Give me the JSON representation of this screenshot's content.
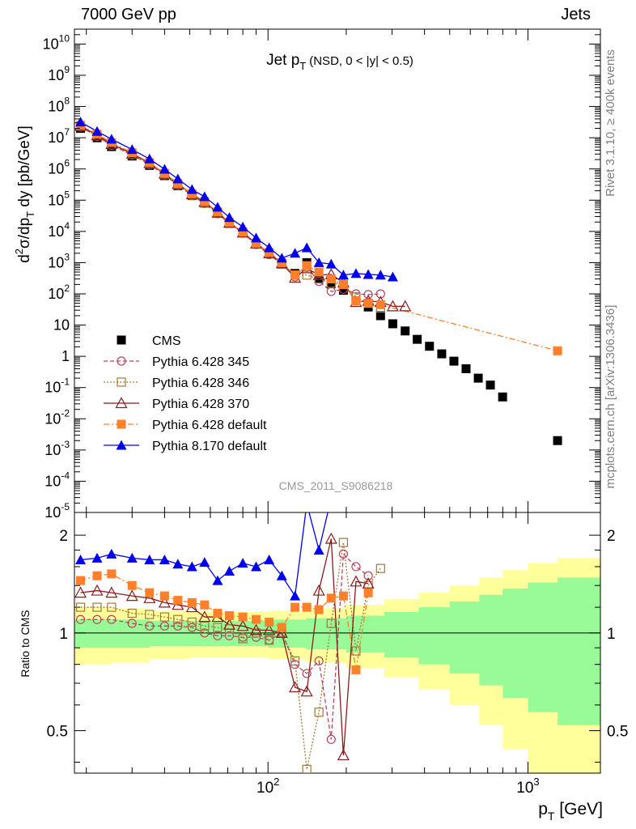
{
  "header": {
    "left": "7000 GeV pp",
    "right": "Jets"
  },
  "side": {
    "rivet": "Rivet 3.1.10, ≥ 400k events",
    "mcplots": "mcplots.cern.ch [arXiv:1306.3436]"
  },
  "chart_data": {
    "type": "scatter",
    "title": "Jet p_T (NSD,   0 < |y| < 0.5)",
    "watermark": "CMS_2011_S9086218",
    "xlabel": "p_T [GeV]",
    "ylabel_main": "d^2σ/dp_T dy [pb/GeV]",
    "ylabel_ratio": "Ratio to CMS",
    "x_scale": "log",
    "xlim": [
      18,
      1900
    ],
    "x_ticks": [
      100,
      1000
    ],
    "main_ylim": [
      1e-05,
      30000000000.0
    ],
    "main_y_scale": "log",
    "main_y_ticks": [
      "10^-5",
      "10^-4",
      "10^-3",
      "10^-2",
      "10^-1",
      "1",
      "10",
      "10^2",
      "10^3",
      "10^4",
      "10^5",
      "10^6",
      "10^7",
      "10^8",
      "10^9",
      "10^10"
    ],
    "ratio_ylim": [
      0.37,
      2.35
    ],
    "ratio_y_scale": "log",
    "ratio_y_ticks": [
      "0.5",
      "1",
      "2"
    ],
    "legend_position": "left-center",
    "band_colors": {
      "inner": "#98fb98",
      "outer": "#ffff9c"
    },
    "series": [
      {
        "name": "CMS",
        "color": "#000000",
        "marker": "square-filled",
        "line": "none",
        "x": [
          19,
          22,
          25,
          30,
          35,
          40,
          45,
          51,
          57,
          64,
          71,
          80,
          90,
          101,
          113,
          127,
          141,
          157,
          175,
          195,
          218,
          243,
          271,
          302,
          337,
          375,
          418,
          466,
          519,
          578,
          644,
          717,
          799,
          1300
        ],
        "y": [
          20000000,
          10000000,
          5200000,
          2600000,
          1300000,
          610000,
          290000,
          140000,
          80000,
          38000,
          18000,
          9000,
          4000,
          2000,
          900,
          450,
          1000,
          300,
          210,
          130,
          60,
          38,
          20,
          11,
          6.5,
          3.5,
          2.1,
          1.2,
          0.7,
          0.4,
          0.2,
          0.12,
          0.05,
          0.002
        ]
      },
      {
        "name": "Pythia 6.428 345",
        "color": "#b5455a",
        "marker": "circle-open",
        "line": "dashed",
        "x": [
          19,
          22,
          25,
          30,
          35,
          40,
          45,
          51,
          57,
          64,
          71,
          80,
          90,
          101,
          113,
          127,
          141,
          157,
          175,
          195,
          218,
          243,
          271
        ],
        "y": [
          22000000,
          11000000,
          5700000,
          2800000,
          1400000,
          640000,
          300000,
          140000,
          78000,
          37000,
          18000,
          8800,
          3800,
          1800,
          900,
          350,
          700,
          250,
          120,
          140,
          100,
          95,
          100
        ],
        "ratio_x": [
          19,
          22,
          25,
          30,
          35,
          40,
          45,
          51,
          57,
          64,
          71,
          80,
          90,
          101,
          113,
          127,
          141,
          157,
          175,
          195,
          218,
          243
        ],
        "ratio": [
          1.1,
          1.1,
          1.1,
          1.07,
          1.05,
          1.05,
          1.05,
          1.04,
          1.0,
          0.98,
          0.98,
          0.97,
          0.97,
          0.95,
          1.0,
          0.8,
          0.75,
          0.82,
          0.47,
          1.75,
          1.6,
          1.5
        ]
      },
      {
        "name": "Pythia 6.428 346",
        "color": "#a07838",
        "marker": "square-open",
        "line": "dotted",
        "x": [
          19,
          22,
          25,
          30,
          35,
          40,
          45,
          51,
          57,
          64,
          71,
          80,
          90,
          101,
          113,
          127,
          141,
          157,
          175,
          195,
          218,
          243,
          271
        ],
        "y": [
          23000000,
          11500000,
          6000000,
          2900000,
          1450000,
          660000,
          310000,
          145000,
          80000,
          38000,
          18500,
          9000,
          4000,
          1900,
          950,
          400,
          400,
          300,
          220,
          200,
          80,
          50,
          35
        ],
        "ratio_x": [
          19,
          22,
          25,
          30,
          35,
          40,
          45,
          51,
          57,
          64,
          71,
          80,
          90,
          101,
          113,
          127,
          141,
          157,
          175,
          195,
          218,
          243,
          271
        ],
        "ratio": [
          1.2,
          1.2,
          1.2,
          1.15,
          1.14,
          1.12,
          1.1,
          1.08,
          1.05,
          1.04,
          1.03,
          0.96,
          1.0,
          0.95,
          1.0,
          0.82,
          0.38,
          0.57,
          1.07,
          1.9,
          0.88,
          1.4,
          1.58
        ]
      },
      {
        "name": "Pythia 6.428 370",
        "color": "#8b1a1a",
        "marker": "triangle-open",
        "line": "solid",
        "x": [
          19,
          22,
          25,
          30,
          35,
          40,
          45,
          51,
          57,
          64,
          71,
          80,
          90,
          101,
          113,
          127,
          141,
          157,
          175,
          195,
          218,
          243,
          271,
          302,
          337
        ],
        "y": [
          24000000,
          12000000,
          6300000,
          3100000,
          1550000,
          700000,
          330000,
          155000,
          88000,
          40000,
          19000,
          9200,
          4100,
          2000,
          950,
          330,
          660,
          400,
          420,
          230,
          55,
          60,
          55,
          40,
          40
        ],
        "ratio_x": [
          19,
          22,
          25,
          30,
          35,
          40,
          45,
          51,
          57,
          64,
          71,
          80,
          90,
          101,
          113,
          127,
          141,
          157,
          175,
          195,
          218,
          243
        ],
        "ratio": [
          1.33,
          1.35,
          1.33,
          1.3,
          1.28,
          1.24,
          1.22,
          1.2,
          1.12,
          1.12,
          1.06,
          1.05,
          1.02,
          1.02,
          1.0,
          0.68,
          0.66,
          1.35,
          1.95,
          0.42,
          1.44,
          1.42
        ]
      },
      {
        "name": "Pythia 6.428 default",
        "color": "#ff7f2a",
        "marker": "square-filled",
        "line": "dashdot",
        "x": [
          19,
          22,
          25,
          30,
          35,
          40,
          45,
          51,
          57,
          64,
          71,
          80,
          90,
          101,
          113,
          127,
          141,
          157,
          175,
          195,
          218,
          243,
          271,
          1300
        ],
        "y": [
          25000000,
          13000000,
          7000000,
          3300000,
          1600000,
          720000,
          340000,
          160000,
          90000,
          42000,
          19500,
          9500,
          4200,
          2100,
          1000,
          400,
          800,
          500,
          300,
          200,
          60,
          50,
          45,
          1.5
        ],
        "ratio_x": [
          19,
          22,
          25,
          30,
          35,
          40,
          45,
          51,
          57,
          64,
          71,
          80,
          90,
          101,
          113,
          127,
          141,
          157,
          175,
          195,
          218,
          243
        ],
        "ratio": [
          1.45,
          1.5,
          1.52,
          1.4,
          1.33,
          1.3,
          1.26,
          1.24,
          1.22,
          1.15,
          1.13,
          1.12,
          1.1,
          1.08,
          1.04,
          1.2,
          1.2,
          1.18,
          1.28,
          1.3,
          0.77,
          1.33
        ]
      },
      {
        "name": "Pythia 8.170 default",
        "color": "#0000ee",
        "marker": "triangle-filled",
        "line": "solid",
        "x": [
          19,
          22,
          25,
          30,
          35,
          40,
          45,
          51,
          57,
          64,
          71,
          80,
          90,
          101,
          113,
          127,
          141,
          157,
          175,
          195,
          218,
          243,
          271,
          302
        ],
        "y": [
          32000000,
          16000000,
          9000000,
          4200000,
          2100000,
          980000,
          480000,
          220000,
          130000,
          60000,
          28000,
          14000,
          6200,
          3000,
          1400,
          2000,
          3000,
          1000,
          900,
          400,
          450,
          420,
          400,
          350
        ],
        "ratio_x": [
          19,
          22,
          25,
          30,
          35,
          40,
          45,
          51,
          57,
          64,
          71,
          80,
          90,
          101,
          113,
          127,
          141,
          157,
          175
        ],
        "ratio": [
          1.68,
          1.7,
          1.75,
          1.7,
          1.68,
          1.68,
          1.63,
          1.6,
          1.65,
          1.45,
          1.55,
          1.64,
          1.6,
          1.68,
          1.5,
          1.3,
          2.5,
          1.8,
          2.6
        ]
      }
    ]
  }
}
